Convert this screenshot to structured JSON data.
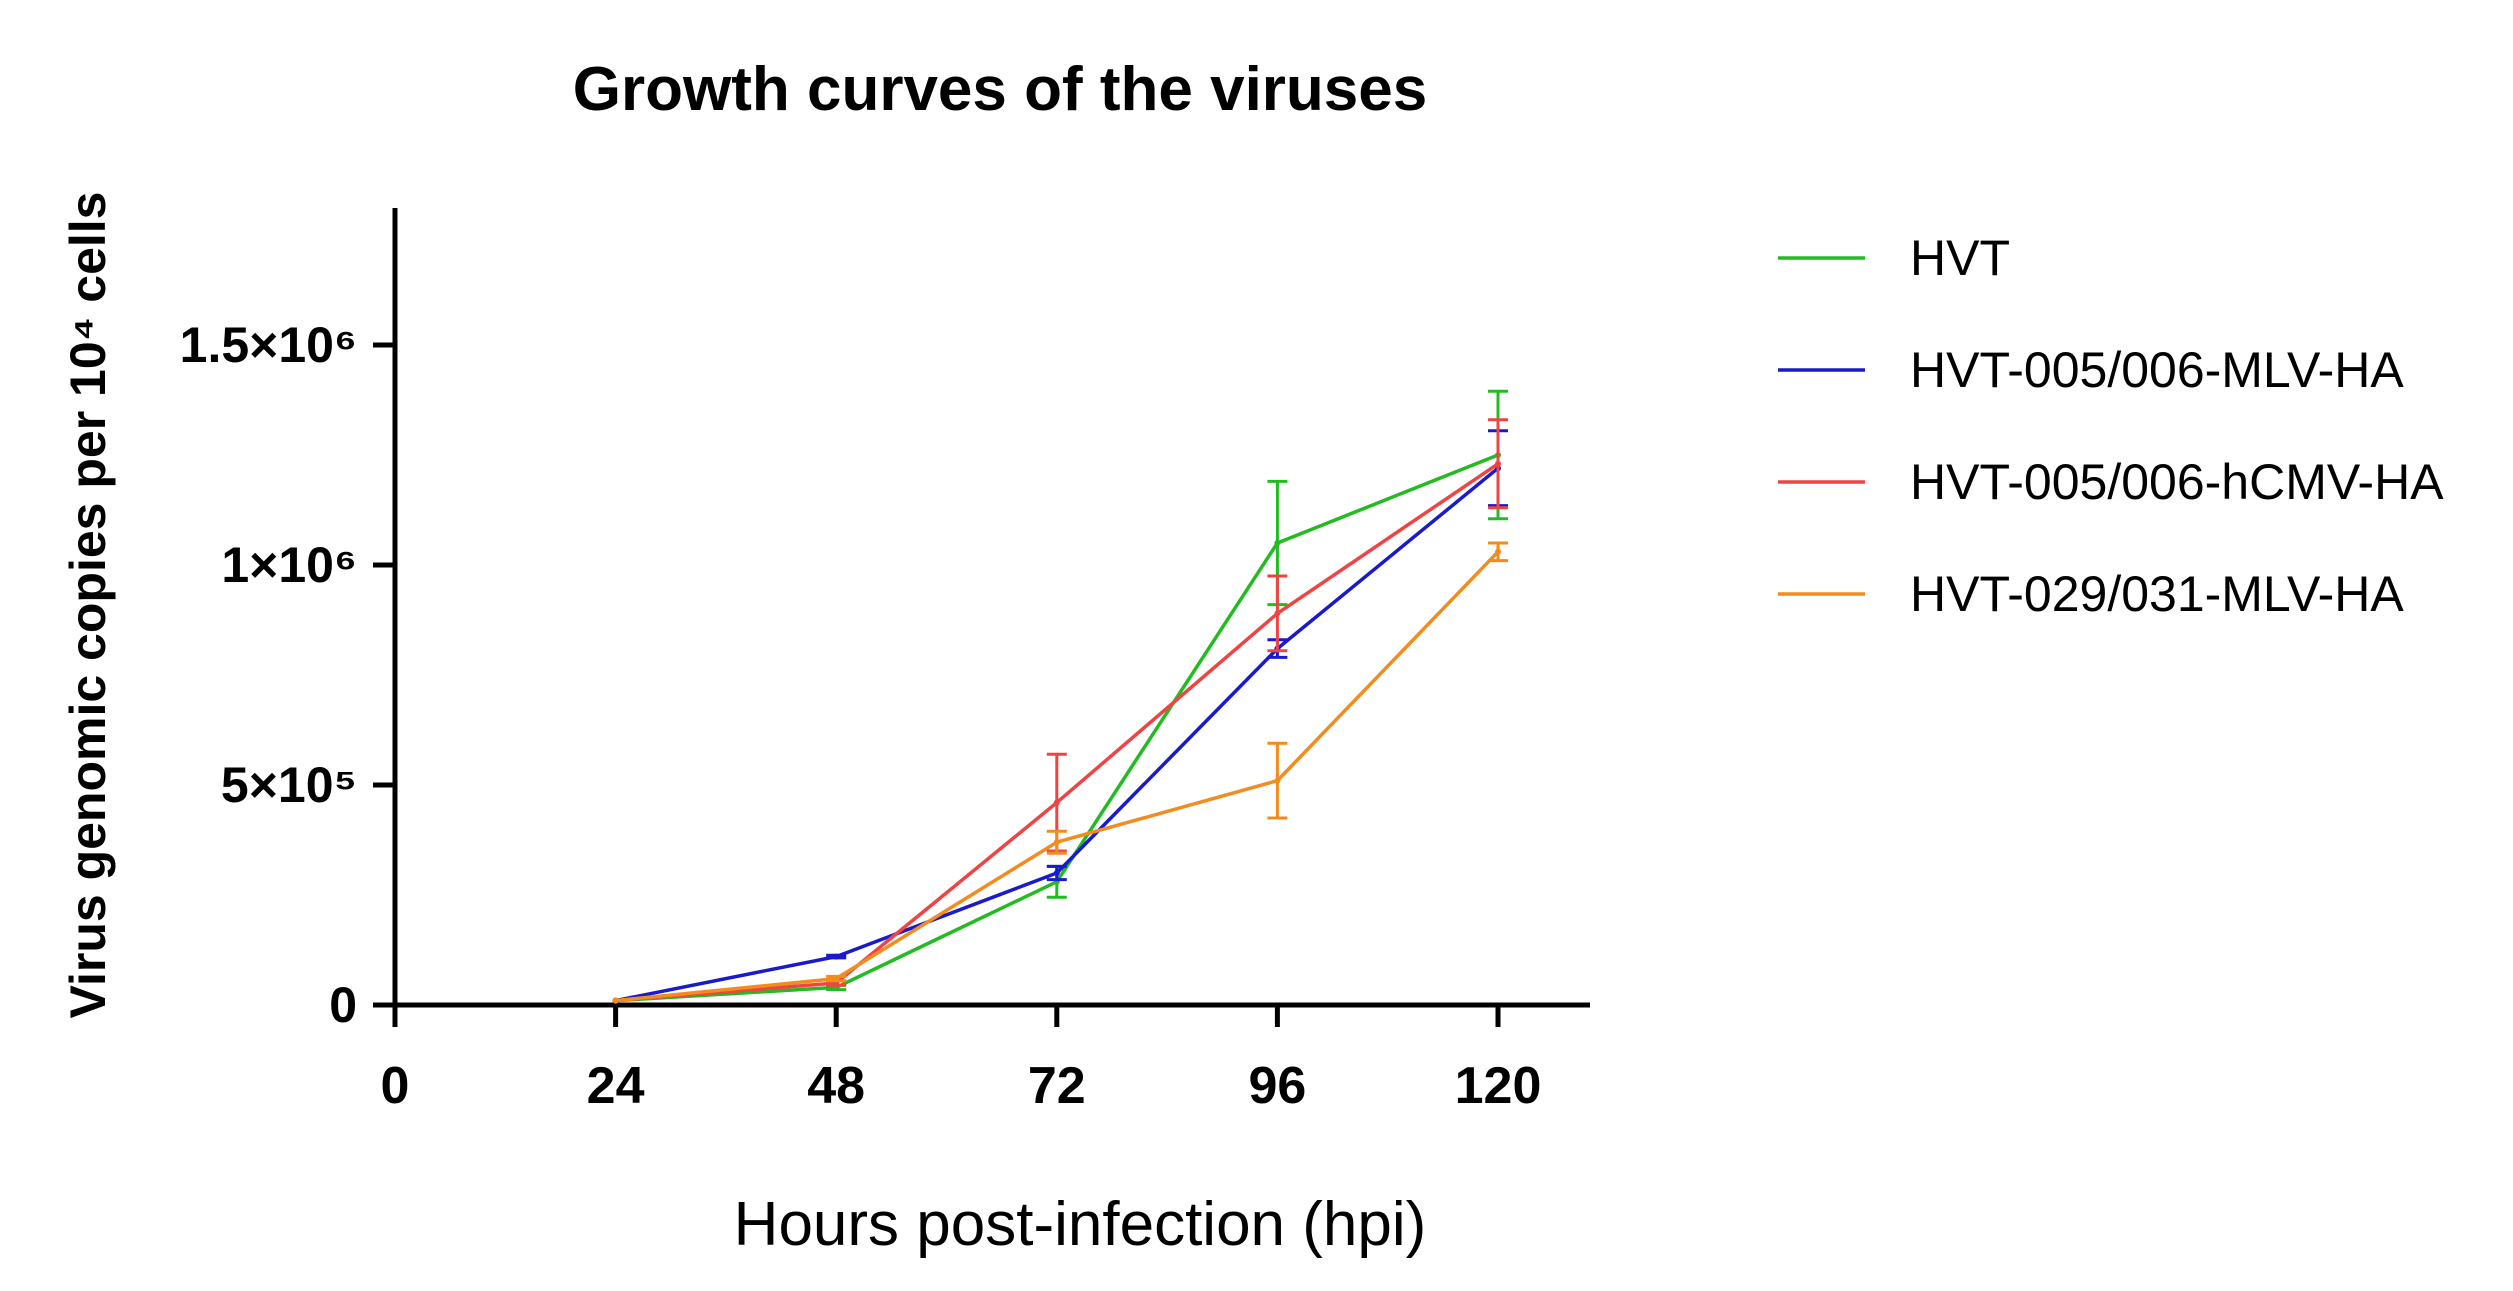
{
  "chart_data": {
    "type": "line",
    "title": "Growth curves of the viruses",
    "xlabel": "Hours post-infection (hpi)",
    "ylabel": "Virus genomic copies per 10⁴ cells",
    "xlim": [
      0,
      130
    ],
    "ylim": [
      0,
      1800000
    ],
    "xticks": [
      {
        "value": 0,
        "label": "0"
      },
      {
        "value": 24,
        "label": "24"
      },
      {
        "value": 48,
        "label": "48"
      },
      {
        "value": 72,
        "label": "72"
      },
      {
        "value": 96,
        "label": "96"
      },
      {
        "value": 120,
        "label": "120"
      }
    ],
    "yticks": [
      {
        "value": 0,
        "label": "0"
      },
      {
        "value": 500000,
        "label": "5×10⁵"
      },
      {
        "value": 1000000,
        "label": "1×10⁶"
      },
      {
        "value": 1500000,
        "label": "1.5×10⁶"
      }
    ],
    "legend_position": "right",
    "series": [
      {
        "name": "HVT",
        "color": "#22bb22",
        "x": [
          24,
          48,
          72,
          96,
          120
        ],
        "y": [
          10000,
          40000,
          280000,
          1050000,
          1250000
        ],
        "err": [
          0,
          5000,
          35000,
          140000,
          145000
        ]
      },
      {
        "name": "HVT-005/006-MLV-HA",
        "color": "#1a1acc",
        "x": [
          24,
          48,
          72,
          96,
          120
        ],
        "y": [
          10000,
          110000,
          300000,
          810000,
          1220000
        ],
        "err": [
          0,
          3000,
          15000,
          20000,
          85000
        ]
      },
      {
        "name": "HVT-005/006-hCMV-HA",
        "color": "#ee4444",
        "x": [
          24,
          48,
          72,
          96,
          120
        ],
        "y": [
          10000,
          50000,
          460000,
          890000,
          1230000
        ],
        "err": [
          0,
          5000,
          110000,
          85000,
          100000
        ]
      },
      {
        "name": "HVT-029/031-MLV-HA",
        "color": "#f28c1e",
        "x": [
          24,
          48,
          72,
          96,
          120
        ],
        "y": [
          10000,
          60000,
          370000,
          510000,
          1030000
        ],
        "err": [
          0,
          5000,
          25000,
          85000,
          20000
        ]
      }
    ]
  }
}
